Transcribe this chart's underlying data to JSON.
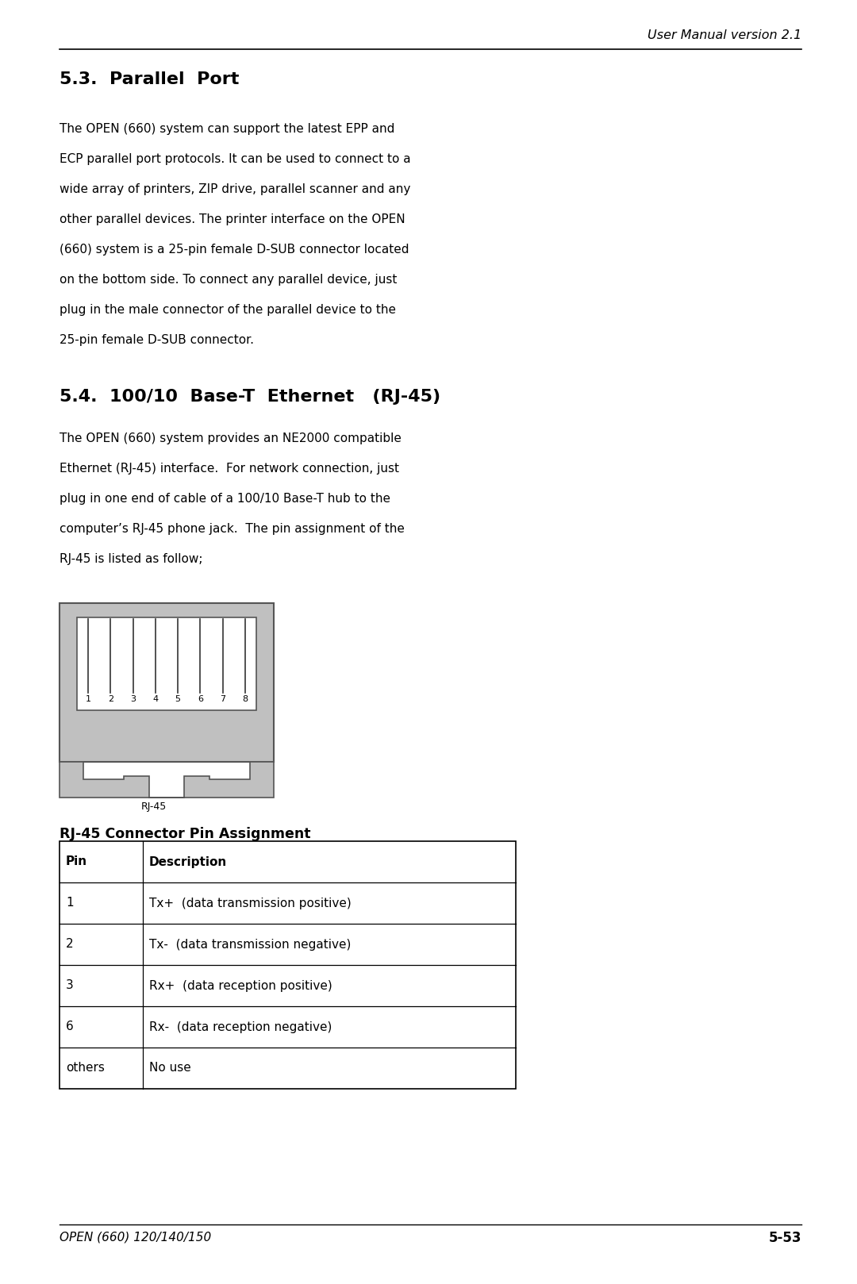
{
  "header_text": "User Manual version 2.1",
  "section1_title": "5.3.  Parallel  Port",
  "section1_body_lines": [
    "The OPEN (660) system can support the latest EPP and",
    "ECP parallel port protocols. It can be used to connect to a",
    "wide array of printers, ZIP drive, parallel scanner and any",
    "other parallel devices. The printer interface on the OPEN",
    "(660) system is a 25-pin female D-SUB connector located",
    "on the bottom side. To connect any parallel device, just",
    "plug in the male connector of the parallel device to the",
    "25-pin female D-SUB connector."
  ],
  "section2_title": "5.4.  100/10  Base-T  Ethernet   (RJ-45)",
  "section2_body_lines": [
    "The OPEN (660) system provides an NE2000 compatible",
    "Ethernet (RJ-45) interface.  For network connection, just",
    "plug in one end of cable of a 100/10 Base-T hub to the",
    "computer’s RJ-45 phone jack.  The pin assignment of the",
    "RJ-45 is listed as follow;"
  ],
  "rj45_label": "RJ-45",
  "table_title": "RJ-45 Connector Pin Assignment",
  "table_headers": [
    "Pin",
    "Description"
  ],
  "table_rows": [
    [
      "1",
      "Tx+  (data transmission positive)"
    ],
    [
      "2",
      "Tx-  (data transmission negative)"
    ],
    [
      "3",
      "Rx+  (data reception positive)"
    ],
    [
      "6",
      "Rx-  (data reception negative)"
    ],
    [
      "others",
      "No use"
    ]
  ],
  "footer_left": "OPEN (660) 120/140/150",
  "footer_right": "5-53",
  "bg_color": "#ffffff",
  "text_color": "#000000",
  "light_gray": "#c0c0c0",
  "pin_labels": [
    "1",
    "2",
    "3",
    "4",
    "5",
    "6",
    "7",
    "8"
  ]
}
